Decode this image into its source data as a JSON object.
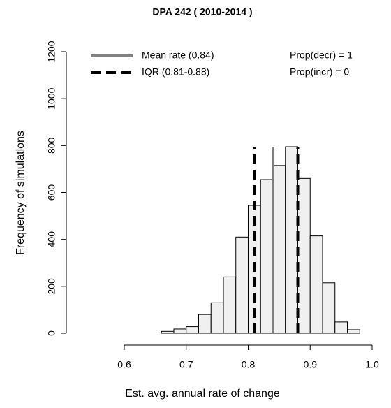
{
  "chart_data": {
    "type": "histogram",
    "title": "DPA  242 ( 2010-2014 )",
    "x_label": "Est. avg. annual rate of change",
    "y_label": "Frequency of simulations",
    "bins": [
      0.58,
      0.6,
      0.62,
      0.64,
      0.66,
      0.68,
      0.7,
      0.72,
      0.74,
      0.76,
      0.78,
      0.8,
      0.82,
      0.84,
      0.86,
      0.88,
      0.9,
      0.92,
      0.94,
      0.96,
      0.98
    ],
    "values": [
      0,
      0,
      0,
      0,
      8,
      18,
      28,
      80,
      130,
      240,
      410,
      545,
      655,
      715,
      795,
      660,
      415,
      215,
      48,
      15
    ],
    "color": "#f0f0f0",
    "xlim": [
      0.56,
      1.02
    ],
    "xticks": [
      0.6,
      0.7,
      0.8,
      0.9,
      {
        "value": 1.0,
        "label": "1.0"
      }
    ],
    "ylim": [
      0,
      1200
    ],
    "yticks": [
      0,
      200,
      400,
      600,
      800,
      1000,
      1200
    ],
    "reference_lines": [
      {
        "name": "Mean rate (0.84)",
        "color": "#808080",
        "dashed": false,
        "values": [
          0.84
        ]
      },
      {
        "name": "IQR (0.81-0.88)",
        "color": "#000000",
        "dashed": true,
        "values": [
          0.81,
          0.88
        ]
      }
    ],
    "annotations": [
      "Prop(decr) = 1",
      "Prop(incr) = 0"
    ]
  }
}
